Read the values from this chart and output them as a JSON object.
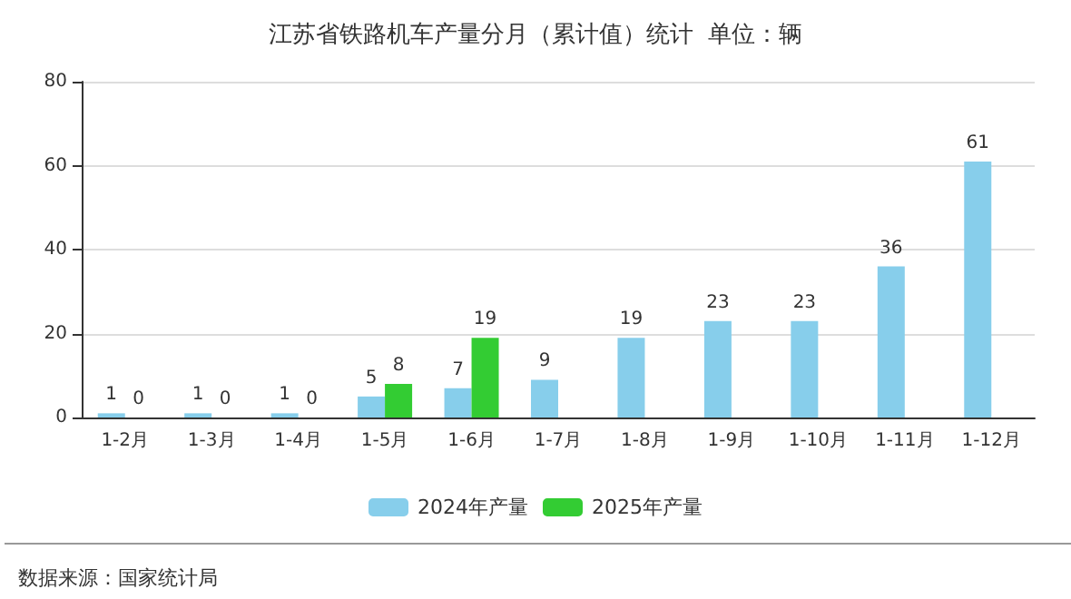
{
  "chart_data": {
    "type": "bar",
    "title": "江苏省铁路机车产量分月（累计值）统计  单位：辆",
    "categories": [
      "1-2月",
      "1-3月",
      "1-4月",
      "1-5月",
      "1-6月",
      "1-7月",
      "1-8月",
      "1-9月",
      "1-10月",
      "1-11月",
      "1-12月"
    ],
    "series": [
      {
        "name": "2024年产量",
        "color": "#87ceeb",
        "values": [
          1,
          1,
          1,
          5,
          7,
          9,
          19,
          23,
          23,
          36,
          61
        ]
      },
      {
        "name": "2025年产量",
        "color": "#33cc33",
        "values": [
          0,
          0,
          0,
          8,
          19,
          null,
          null,
          null,
          null,
          null,
          null
        ]
      }
    ],
    "ylim": [
      0,
      80
    ],
    "yticks": [
      0,
      20,
      40,
      60,
      80
    ],
    "grid": "y",
    "legend": "bottom",
    "data_labels": true,
    "annotations": [
      "数据来源：国家统计局"
    ]
  }
}
